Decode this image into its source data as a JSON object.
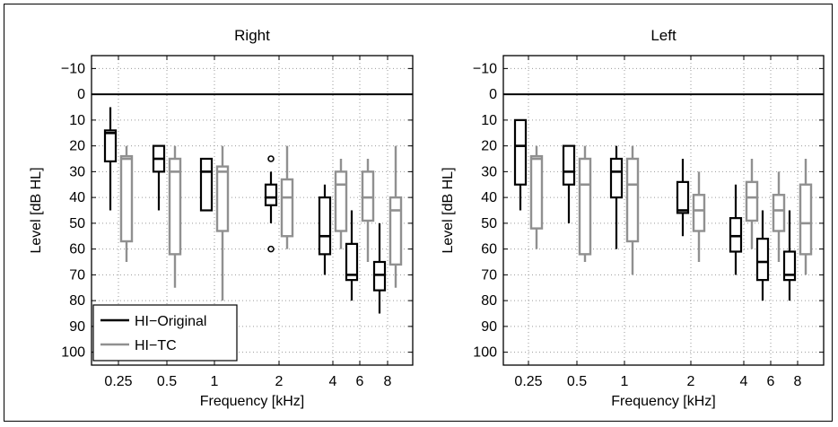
{
  "chart_data": [
    {
      "type": "box",
      "title": "Right",
      "xlabel": "Frequency [kHz]",
      "ylabel": "Level [dB HL]",
      "categories": [
        "0.25",
        "0.5",
        "1",
        "2",
        "4",
        "6",
        "8"
      ],
      "yticks": [
        "−10",
        "0",
        "10",
        "20",
        "30",
        "40",
        "50",
        "60",
        "70",
        "80",
        "90",
        "100"
      ],
      "ylim": [
        -15,
        105
      ],
      "y_inverted": true,
      "reference_line": 0,
      "grid": true,
      "legend": {
        "position": "bottom-left",
        "entries": [
          "HI−Original",
          "HI−TC"
        ]
      },
      "series": [
        {
          "name": "HI−Original",
          "color": "#000000",
          "boxes": [
            {
              "category": "0.25",
              "whisker_low": 5,
              "q1": 14,
              "median": 15,
              "q3": 26,
              "whisker_high": 45
            },
            {
              "category": "0.5",
              "whisker_low": 20,
              "q1": 20,
              "median": 25,
              "q3": 30,
              "whisker_high": 45
            },
            {
              "category": "1",
              "whisker_low": 25,
              "q1": 25,
              "median": 30,
              "q3": 45,
              "whisker_high": 45
            },
            {
              "category": "2",
              "whisker_low": 30,
              "q1": 35,
              "median": 40,
              "q3": 43,
              "whisker_high": 50,
              "outliers": [
                25,
                60
              ]
            },
            {
              "category": "4",
              "whisker_low": 35,
              "q1": 40,
              "median": 55,
              "q3": 62,
              "whisker_high": 70
            },
            {
              "category": "6",
              "whisker_low": 45,
              "q1": 58,
              "median": 70,
              "q3": 72,
              "whisker_high": 80
            },
            {
              "category": "8",
              "whisker_low": 50,
              "q1": 65,
              "median": 70,
              "q3": 76,
              "whisker_high": 85
            }
          ]
        },
        {
          "name": "HI−TC",
          "color": "#909090",
          "boxes": [
            {
              "category": "0.25",
              "whisker_low": 20,
              "q1": 24,
              "median": 25,
              "q3": 57,
              "whisker_high": 65
            },
            {
              "category": "0.5",
              "whisker_low": 20,
              "q1": 25,
              "median": 30,
              "q3": 62,
              "whisker_high": 75
            },
            {
              "category": "1",
              "whisker_low": 20,
              "q1": 28,
              "median": 30,
              "q3": 53,
              "whisker_high": 80
            },
            {
              "category": "2",
              "whisker_low": 20,
              "q1": 33,
              "median": 40,
              "q3": 55,
              "whisker_high": 60
            },
            {
              "category": "4",
              "whisker_low": 25,
              "q1": 30,
              "median": 35,
              "q3": 53,
              "whisker_high": 60
            },
            {
              "category": "6",
              "whisker_low": 25,
              "q1": 30,
              "median": 40,
              "q3": 49,
              "whisker_high": 65
            },
            {
              "category": "8",
              "whisker_low": 20,
              "q1": 40,
              "median": 45,
              "q3": 66,
              "whisker_high": 75
            }
          ]
        }
      ]
    },
    {
      "type": "box",
      "title": "Left",
      "xlabel": "Frequency [kHz]",
      "ylabel": "Level [dB HL]",
      "categories": [
        "0.25",
        "0.5",
        "1",
        "2",
        "4",
        "6",
        "8"
      ],
      "yticks": [
        "−10",
        "0",
        "10",
        "20",
        "30",
        "40",
        "50",
        "60",
        "70",
        "80",
        "90",
        "100"
      ],
      "ylim": [
        -15,
        105
      ],
      "y_inverted": true,
      "reference_line": 0,
      "grid": true,
      "series": [
        {
          "name": "HI−Original",
          "color": "#000000",
          "boxes": [
            {
              "category": "0.25",
              "whisker_low": 10,
              "q1": 10,
              "median": 20,
              "q3": 35,
              "whisker_high": 45
            },
            {
              "category": "0.5",
              "whisker_low": 20,
              "q1": 20,
              "median": 30,
              "q3": 35,
              "whisker_high": 50
            },
            {
              "category": "1",
              "whisker_low": 20,
              "q1": 25,
              "median": 30,
              "q3": 40,
              "whisker_high": 60
            },
            {
              "category": "2",
              "whisker_low": 25,
              "q1": 34,
              "median": 45,
              "q3": 46,
              "whisker_high": 55
            },
            {
              "category": "4",
              "whisker_low": 35,
              "q1": 48,
              "median": 55,
              "q3": 61,
              "whisker_high": 70
            },
            {
              "category": "6",
              "whisker_low": 45,
              "q1": 56,
              "median": 65,
              "q3": 72,
              "whisker_high": 80
            },
            {
              "category": "8",
              "whisker_low": 45,
              "q1": 61,
              "median": 70,
              "q3": 72,
              "whisker_high": 80
            }
          ]
        },
        {
          "name": "HI−TC",
          "color": "#909090",
          "boxes": [
            {
              "category": "0.25",
              "whisker_low": 20,
              "q1": 24,
              "median": 25,
              "q3": 52,
              "whisker_high": 60
            },
            {
              "category": "0.5",
              "whisker_low": 20,
              "q1": 25,
              "median": 35,
              "q3": 62,
              "whisker_high": 65
            },
            {
              "category": "1",
              "whisker_low": 20,
              "q1": 25,
              "median": 35,
              "q3": 57,
              "whisker_high": 70
            },
            {
              "category": "2",
              "whisker_low": 30,
              "q1": 39,
              "median": 45,
              "q3": 53,
              "whisker_high": 65
            },
            {
              "category": "4",
              "whisker_low": 25,
              "q1": 34,
              "median": 40,
              "q3": 49,
              "whisker_high": 60
            },
            {
              "category": "6",
              "whisker_low": 30,
              "q1": 39,
              "median": 45,
              "q3": 53,
              "whisker_high": 65
            },
            {
              "category": "8",
              "whisker_low": 25,
              "q1": 35,
              "median": 50,
              "q3": 62,
              "whisker_high": 70
            }
          ]
        }
      ]
    }
  ]
}
